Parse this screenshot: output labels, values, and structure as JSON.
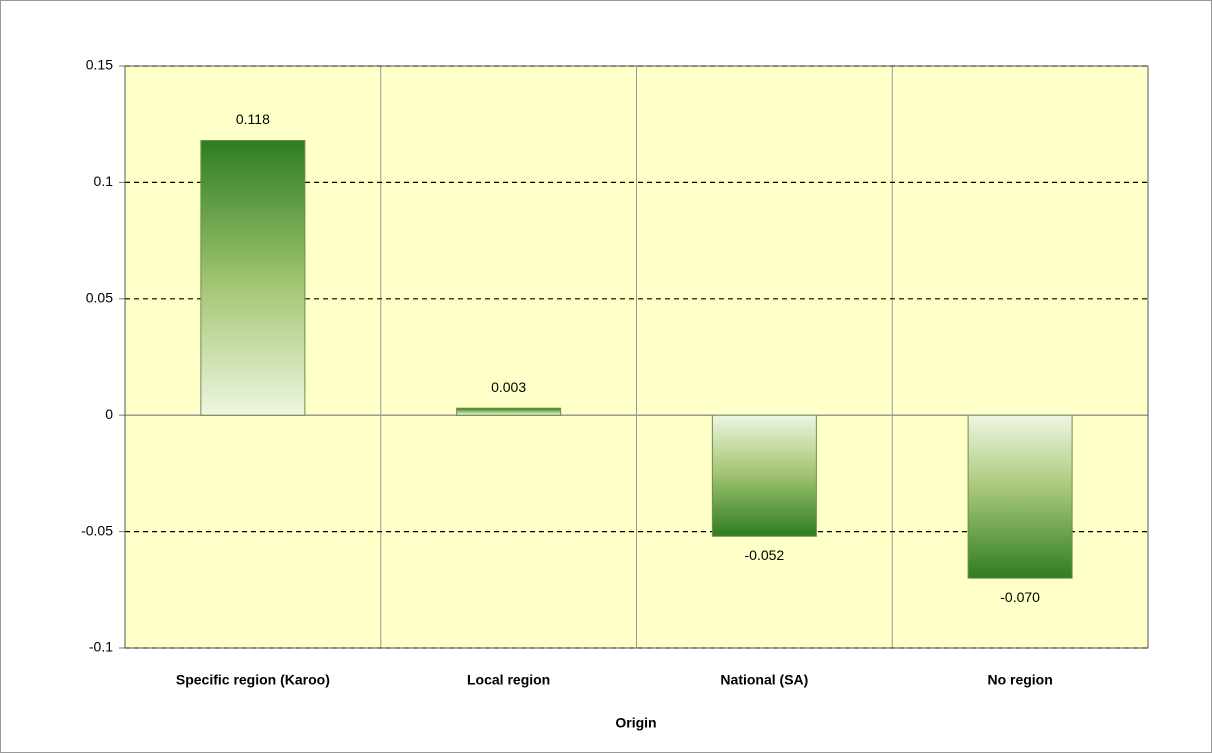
{
  "chart_data": {
    "type": "bar",
    "x_label": "Origin",
    "categories": [
      "Specific region (Karoo)",
      "Local region",
      "National (SA)",
      "No region"
    ],
    "values": [
      0.118,
      0.003,
      -0.052,
      -0.07
    ],
    "value_labels": [
      "0.118",
      "0.003",
      "-0.052",
      "-0.070"
    ],
    "color": "#2e7d1e",
    "ylim": [
      -0.1,
      0.15
    ],
    "yticks": [
      0.15,
      0.1,
      0.05,
      0,
      -0.05,
      -0.1
    ],
    "grid": true
  }
}
